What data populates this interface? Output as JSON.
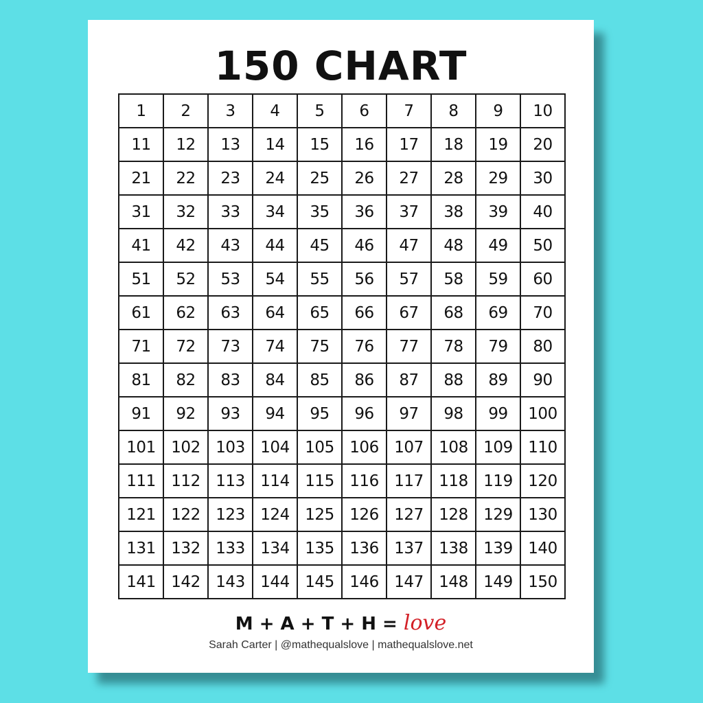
{
  "title": "150 CHART",
  "grid": [
    [
      "1",
      "2",
      "3",
      "4",
      "5",
      "6",
      "7",
      "8",
      "9",
      "10"
    ],
    [
      "11",
      "12",
      "13",
      "14",
      "15",
      "16",
      "17",
      "18",
      "19",
      "20"
    ],
    [
      "21",
      "22",
      "23",
      "24",
      "25",
      "26",
      "27",
      "28",
      "29",
      "30"
    ],
    [
      "31",
      "32",
      "33",
      "34",
      "35",
      "36",
      "37",
      "38",
      "39",
      "40"
    ],
    [
      "41",
      "42",
      "43",
      "44",
      "45",
      "46",
      "47",
      "48",
      "49",
      "50"
    ],
    [
      "51",
      "52",
      "53",
      "54",
      "55",
      "56",
      "57",
      "58",
      "59",
      "60"
    ],
    [
      "61",
      "62",
      "63",
      "64",
      "65",
      "66",
      "67",
      "68",
      "69",
      "70"
    ],
    [
      "71",
      "72",
      "73",
      "74",
      "75",
      "76",
      "77",
      "78",
      "79",
      "80"
    ],
    [
      "81",
      "82",
      "83",
      "84",
      "85",
      "86",
      "87",
      "88",
      "89",
      "90"
    ],
    [
      "91",
      "92",
      "93",
      "94",
      "95",
      "96",
      "97",
      "98",
      "99",
      "100"
    ],
    [
      "101",
      "102",
      "103",
      "104",
      "105",
      "106",
      "107",
      "108",
      "109",
      "110"
    ],
    [
      "111",
      "112",
      "113",
      "114",
      "115",
      "116",
      "117",
      "118",
      "119",
      "120"
    ],
    [
      "121",
      "122",
      "123",
      "124",
      "125",
      "126",
      "127",
      "128",
      "129",
      "130"
    ],
    [
      "131",
      "132",
      "133",
      "134",
      "135",
      "136",
      "137",
      "138",
      "139",
      "140"
    ],
    [
      "141",
      "142",
      "143",
      "144",
      "145",
      "146",
      "147",
      "148",
      "149",
      "150"
    ]
  ],
  "footer": {
    "motto": "M + A + T + H = ",
    "love": "love",
    "credit": "Sarah Carter | @mathequalslove | mathequalslove.net"
  },
  "colors": {
    "background": "#5ddfe6",
    "love": "#d32027"
  }
}
